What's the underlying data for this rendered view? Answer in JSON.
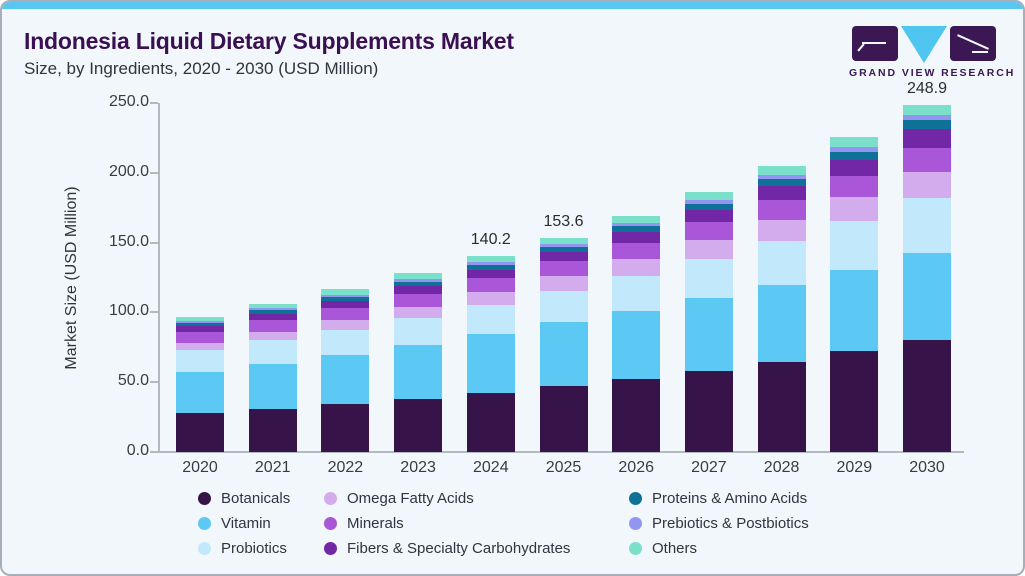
{
  "header": {
    "title": "Indonesia Liquid Dietary Supplements Market",
    "subtitle": "Size, by Ingredients, 2020 - 2030 (USD Million)"
  },
  "logo": {
    "text": "GRAND VIEW RESEARCH"
  },
  "chart_data": {
    "type": "bar",
    "stacked": true,
    "title": "Indonesia Liquid Dietary Supplements Market Size, by Ingredients, 2020 - 2030 (USD Million)",
    "xlabel": "",
    "ylabel": "Market Size (USD Million)",
    "ylim": [
      0,
      250
    ],
    "y_ticks": [
      "0.0",
      "50.0",
      "100.0",
      "150.0",
      "200.0",
      "250.0"
    ],
    "grid": false,
    "legend_position": "bottom",
    "categories": [
      2020,
      2021,
      2022,
      2023,
      2024,
      2025,
      2026,
      2027,
      2028,
      2029,
      2030
    ],
    "series": [
      {
        "name": "Botanicals",
        "color": "#361449",
        "values": [
          27.7,
          30.8,
          34.3,
          38.1,
          42.3,
          47.1,
          52.4,
          58.3,
          64.8,
          72.2,
          80.5
        ]
      },
      {
        "name": "Vitamin",
        "color": "#5cc9f4",
        "values": [
          29.8,
          32.4,
          35.3,
          38.5,
          42.1,
          45.8,
          48.7,
          51.8,
          55.1,
          58.5,
          62.1
        ]
      },
      {
        "name": "Probiotics",
        "color": "#c1e9fb",
        "values": [
          15.5,
          16.7,
          17.9,
          19.3,
          20.8,
          22.3,
          25.0,
          27.9,
          31.4,
          35.0,
          39.4
        ]
      },
      {
        "name": "Omega Fatty Acids",
        "color": "#d3aced",
        "values": [
          5.2,
          6.2,
          7.1,
          8.3,
          9.5,
          11.1,
          12.3,
          13.8,
          15.2,
          16.9,
          18.8
        ]
      },
      {
        "name": "Minerals",
        "color": "#a956d9",
        "values": [
          7.9,
          8.3,
          8.8,
          9.3,
          10.0,
          10.4,
          11.5,
          12.7,
          13.7,
          15.1,
          16.8
        ]
      },
      {
        "name": "Fibers & Specialty Carbohydrates",
        "color": "#7228a6",
        "values": [
          4.3,
          4.6,
          5.0,
          5.5,
          5.9,
          6.5,
          7.5,
          8.8,
          10.2,
          11.8,
          13.7
        ]
      },
      {
        "name": "Proteins & Amino Acids",
        "color": "#0f7198",
        "values": [
          2.1,
          2.4,
          2.7,
          3.0,
          3.4,
          3.8,
          4.2,
          4.7,
          5.1,
          5.6,
          6.3
        ]
      },
      {
        "name": "Prebiotics & Postbiotics",
        "color": "#9396f1",
        "values": [
          1.4,
          1.5,
          1.6,
          1.7,
          1.9,
          2.0,
          2.3,
          2.6,
          2.9,
          3.3,
          3.8
        ]
      },
      {
        "name": "Others",
        "color": "#7ae0ca",
        "values": [
          3.1,
          3.4,
          3.8,
          4.2,
          4.3,
          4.6,
          5.2,
          5.6,
          6.6,
          7.3,
          7.5
        ]
      }
    ],
    "data_labels": {
      "2024": "140.2",
      "2025": "153.6",
      "2030": "248.9"
    }
  },
  "colors": {
    "accent_strip": "#58c7f2",
    "card_background": "#f1f7fb",
    "title_text": "#3a1053",
    "axis_line": "#b3b9c0"
  }
}
